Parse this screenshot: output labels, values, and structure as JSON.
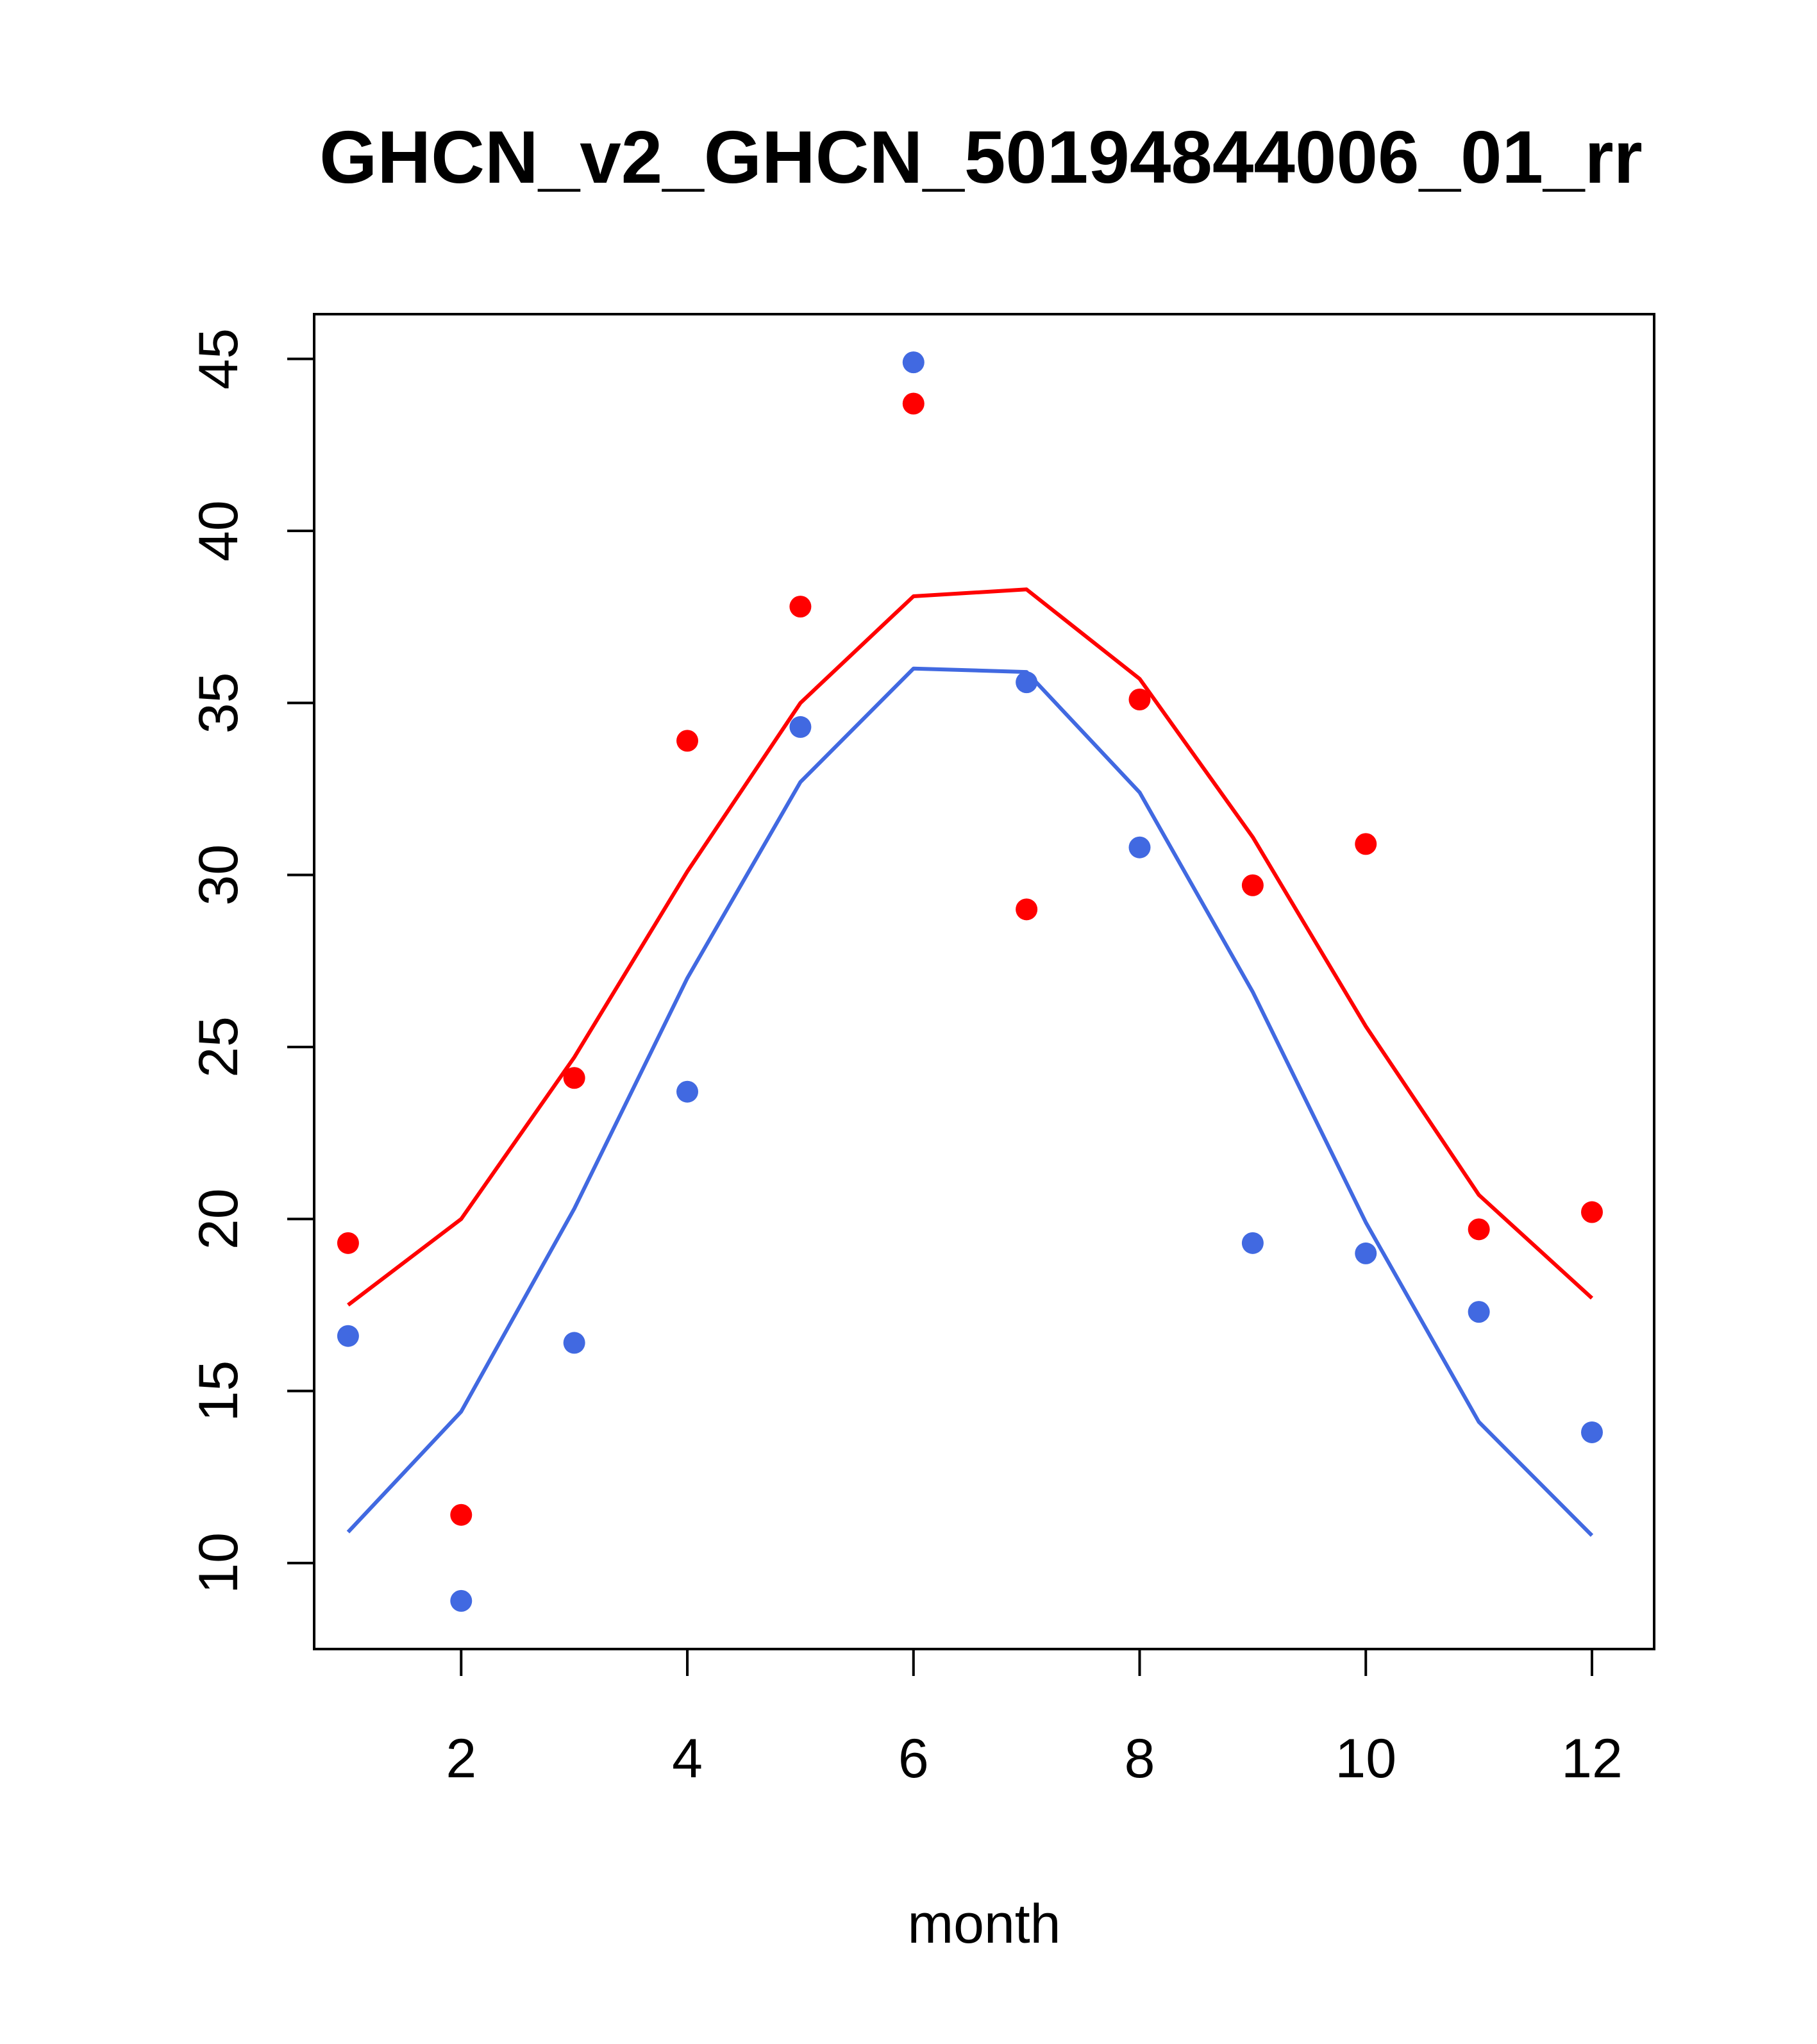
{
  "chart_data": {
    "type": "scatter",
    "title": "GHCN_v2_GHCN_50194844006_01_rr",
    "xlabel": "month",
    "ylabel": "",
    "xlim": [
      0.7,
      12.55
    ],
    "ylim": [
      7.5,
      46.3
    ],
    "xticks": [
      2,
      4,
      6,
      8,
      10,
      12
    ],
    "yticks": [
      10,
      15,
      20,
      25,
      30,
      35,
      40,
      45
    ],
    "grid": false,
    "legend": "none",
    "series": [
      {
        "kind": "points",
        "color": "#ff0000",
        "x": [
          1,
          2,
          3,
          4,
          5,
          6,
          7,
          8,
          9,
          10,
          11,
          12
        ],
        "values": [
          19.3,
          11.4,
          24.1,
          33.9,
          37.8,
          43.7,
          29.0,
          35.1,
          29.7,
          30.9,
          19.7,
          20.2
        ]
      },
      {
        "kind": "points",
        "color": "#4169e1",
        "x": [
          1,
          2,
          3,
          4,
          5,
          6,
          7,
          8,
          9,
          10,
          11,
          12
        ],
        "values": [
          16.6,
          8.9,
          16.4,
          23.7,
          34.3,
          44.9,
          35.6,
          30.8,
          19.3,
          19.0,
          17.3,
          13.8
        ]
      },
      {
        "kind": "line",
        "color": "#ff0000",
        "x": [
          1,
          2,
          3,
          4,
          5,
          6,
          7,
          8,
          9,
          10,
          11,
          12
        ],
        "values": [
          17.5,
          20.0,
          24.7,
          30.1,
          35.0,
          38.1,
          38.3,
          35.7,
          31.1,
          25.6,
          20.7,
          17.7
        ]
      },
      {
        "kind": "line",
        "color": "#4169e1",
        "x": [
          1,
          2,
          3,
          4,
          5,
          6,
          7,
          8,
          9,
          10,
          11,
          12
        ],
        "values": [
          10.9,
          14.4,
          20.3,
          27.0,
          32.7,
          36.0,
          35.9,
          32.4,
          26.6,
          19.9,
          14.1,
          10.8
        ]
      }
    ]
  }
}
